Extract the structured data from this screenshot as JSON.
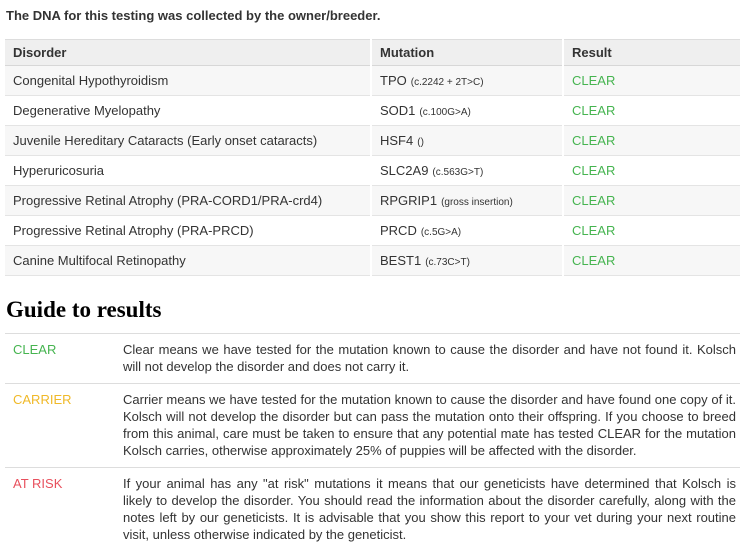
{
  "page": {
    "intro": "The DNA for this testing was collected by the owner/breeder."
  },
  "colors": {
    "clear": "#46b450",
    "carrier": "#f0b928",
    "at_risk": "#e8505d"
  },
  "results_table": {
    "columns": [
      "Disorder",
      "Mutation",
      "Result"
    ],
    "rows": [
      {
        "disorder": "Congenital Hypothyroidism",
        "gene": "TPO",
        "variant": "(c.2242 + 2T>C)",
        "result": "CLEAR",
        "result_color": "#46b450"
      },
      {
        "disorder": "Degenerative Myelopathy",
        "gene": "SOD1",
        "variant": "(c.100G>A)",
        "result": "CLEAR",
        "result_color": "#46b450"
      },
      {
        "disorder": "Juvenile Hereditary Cataracts (Early onset cataracts)",
        "gene": "HSF4",
        "variant": "()",
        "result": "CLEAR",
        "result_color": "#46b450"
      },
      {
        "disorder": "Hyperuricosuria",
        "gene": "SLC2A9",
        "variant": "(c.563G>T)",
        "result": "CLEAR",
        "result_color": "#46b450"
      },
      {
        "disorder": "Progressive Retinal Atrophy (PRA-CORD1/PRA-crd4)",
        "gene": "RPGRIP1",
        "variant": "(gross insertion)",
        "result": "CLEAR",
        "result_color": "#46b450"
      },
      {
        "disorder": "Progressive Retinal Atrophy (PRA-PRCD)",
        "gene": "PRCD",
        "variant": "(c.5G>A)",
        "result": "CLEAR",
        "result_color": "#46b450"
      },
      {
        "disorder": "Canine Multifocal Retinopathy",
        "gene": "BEST1",
        "variant": "(c.73C>T)",
        "result": "CLEAR",
        "result_color": "#46b450"
      }
    ]
  },
  "guide": {
    "heading": "Guide to results",
    "entries": [
      {
        "label": "CLEAR",
        "color": "#46b450",
        "text": "Clear means we have tested for the mutation known to cause the disorder and have not found it. Kolsch will not develop the disorder and does not carry it."
      },
      {
        "label": "CARRIER",
        "color": "#f0b928",
        "text": "Carrier means we have tested for the mutation known to cause the disorder and have found one copy of it. Kolsch will not develop the disorder but can pass the mutation onto their offspring. If you choose to breed from this animal, care must be taken to ensure that any potential mate has tested CLEAR for the mutation Kolsch carries, otherwise approximately 25% of puppies will be affected with the disorder."
      },
      {
        "label": "AT RISK",
        "color": "#e8505d",
        "text": "If your animal has any \"at risk\" mutations it means that our geneticists have determined that Kolsch is likely to develop the disorder. You should read the information about the disorder carefully, along with the notes left by our geneticists. It is advisable that you show this report to your vet during your next routine visit, unless otherwise indicated by the geneticist."
      }
    ]
  }
}
